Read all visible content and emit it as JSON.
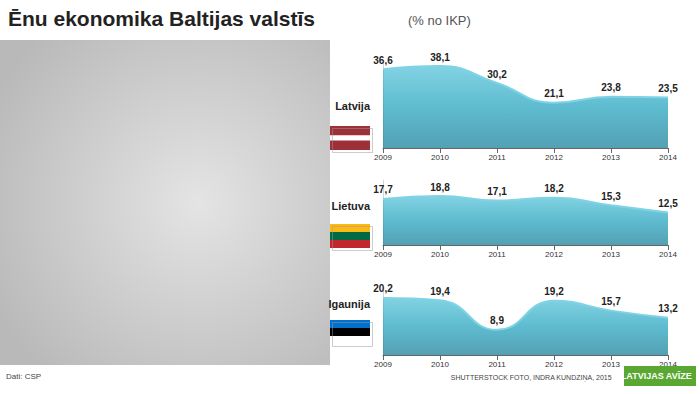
{
  "title": "Ēnu ekonomika Baltijas valstīs",
  "subtitle": "(% no IKP)",
  "source": "Dati: CSP",
  "credit": "SHUTTERSTOCK FOTO, INDRA KUNDZIŅA, 2015",
  "publisher": "LATVIJAS AVĪZE",
  "chart_data": [
    {
      "type": "area",
      "title": "Latvija",
      "categories": [
        "2009",
        "2010",
        "2011",
        "2012",
        "2013",
        "2014"
      ],
      "values": [
        36.6,
        38.1,
        30.2,
        21.1,
        23.8,
        23.5
      ],
      "value_labels": [
        "36,6",
        "38,1",
        "30,2",
        "21,1",
        "23,8",
        "23,5"
      ],
      "color": "#1a9fbb",
      "ylim": [
        0,
        40
      ],
      "grid": false,
      "data_labels": true,
      "tick_labels": "x"
    },
    {
      "type": "area",
      "title": "Lietuva",
      "categories": [
        "2009",
        "2010",
        "2011",
        "2012",
        "2013",
        "2014"
      ],
      "values": [
        17.7,
        18.8,
        17.1,
        18.2,
        15.3,
        12.5
      ],
      "value_labels": [
        "17,7",
        "18,8",
        "17,1",
        "18,2",
        "15,3",
        "12,5"
      ],
      "color": "#1a9fbb",
      "ylim": [
        0,
        25
      ],
      "grid": false,
      "data_labels": true,
      "tick_labels": "x"
    },
    {
      "type": "area",
      "title": "Igaunija",
      "categories": [
        "2009",
        "2010",
        "2011",
        "2012",
        "2013",
        "2014"
      ],
      "values": [
        20.2,
        19.4,
        8.9,
        19.2,
        15.7,
        13.2
      ],
      "value_labels": [
        "20,2",
        "19,4",
        "8,9",
        "19,2",
        "15,7",
        "13,2"
      ],
      "color": "#1a9fbb",
      "ylim": [
        0,
        23
      ],
      "grid": false,
      "data_labels": true,
      "tick_labels": "x"
    }
  ]
}
